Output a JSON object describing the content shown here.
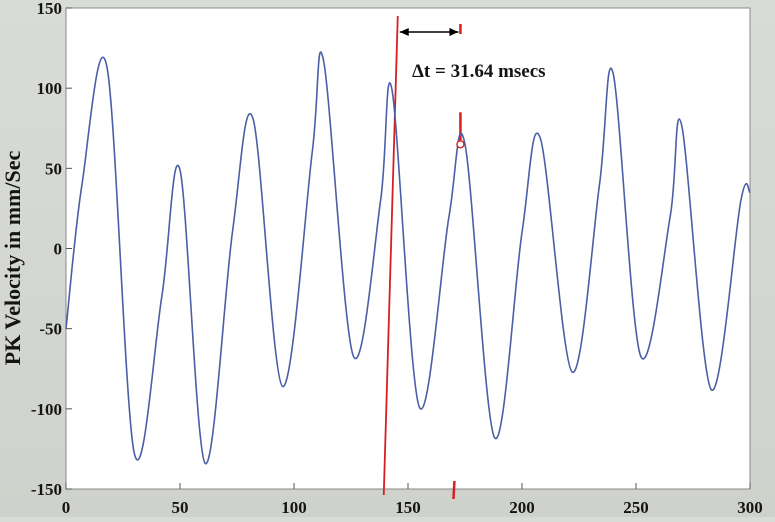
{
  "chart_data": {
    "type": "line",
    "title": "",
    "xlabel": "",
    "ylabel": "PK Velocity in mm/Sec",
    "xlim": [
      0,
      300
    ],
    "ylim": [
      -150,
      150
    ],
    "x_ticks": [
      "0",
      "50",
      "100",
      "150",
      "200",
      "250",
      "300"
    ],
    "y_ticks": [
      "150",
      "100",
      "50",
      "0",
      "-50",
      "-100",
      "-150"
    ],
    "grid": false,
    "series": [
      {
        "color": "#4a5fa6",
        "x": [
          0,
          7,
          18,
          30,
          42,
          50,
          61,
          73,
          82,
          95,
          108,
          113,
          126,
          138,
          143,
          155,
          168,
          175,
          188,
          200,
          208,
          222,
          234,
          240,
          252,
          265,
          270,
          283,
          296,
          300
        ],
        "y": [
          -50,
          40,
          113,
          -128,
          -30,
          49,
          -134,
          10,
          81,
          -86,
          60,
          117,
          -67,
          30,
          99,
          -99,
          20,
          65,
          -118,
          10,
          69,
          -77,
          40,
          109,
          -67,
          20,
          77,
          -88,
          30,
          35
        ]
      }
    ],
    "annotations": {
      "delta_label": "Δt = 31.64 msecs",
      "cursor_a_x": 142,
      "cursor_b_x": 173,
      "cursor_b_y": 65,
      "cursor_color": "#d62020",
      "arrow_color": "#000000"
    }
  }
}
